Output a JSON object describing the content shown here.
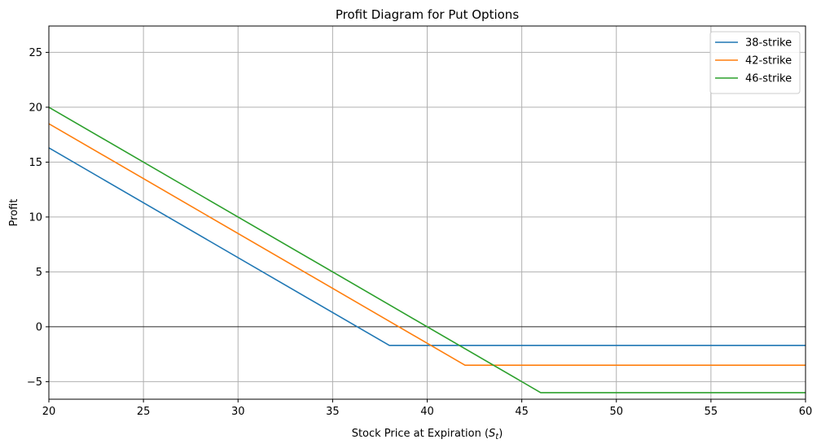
{
  "chart_data": {
    "type": "line",
    "title": "Profit Diagram for Put Options",
    "xlabel": "Stock Price at Expiration (",
    "xlabel_symbol": "S",
    "xlabel_subscript": "t",
    "xlabel_close": ")",
    "ylabel": "Profit",
    "xlim": [
      20,
      60
    ],
    "ylim": [
      -6.6,
      27.4
    ],
    "xticks": [
      20,
      25,
      30,
      35,
      40,
      45,
      50,
      55,
      60
    ],
    "yticks": [
      -5,
      0,
      5,
      10,
      15,
      20,
      25
    ],
    "ytick_labels": [
      "−5",
      "0",
      "5",
      "10",
      "15",
      "20",
      "25"
    ],
    "grid": true,
    "zero_line": true,
    "legend_position": "top-right",
    "series": [
      {
        "name": "38-strike",
        "color": "#1f77b4",
        "x": [
          20,
          38,
          60
        ],
        "y": [
          16.3,
          -1.7,
          -1.7
        ]
      },
      {
        "name": "42-strike",
        "color": "#ff7f0e",
        "x": [
          20,
          42,
          60
        ],
        "y": [
          18.5,
          -3.5,
          -3.5
        ]
      },
      {
        "name": "46-strike",
        "color": "#2ca02c",
        "x": [
          20,
          46,
          60
        ],
        "y": [
          20.0,
          -6.0,
          -6.0
        ]
      }
    ]
  }
}
